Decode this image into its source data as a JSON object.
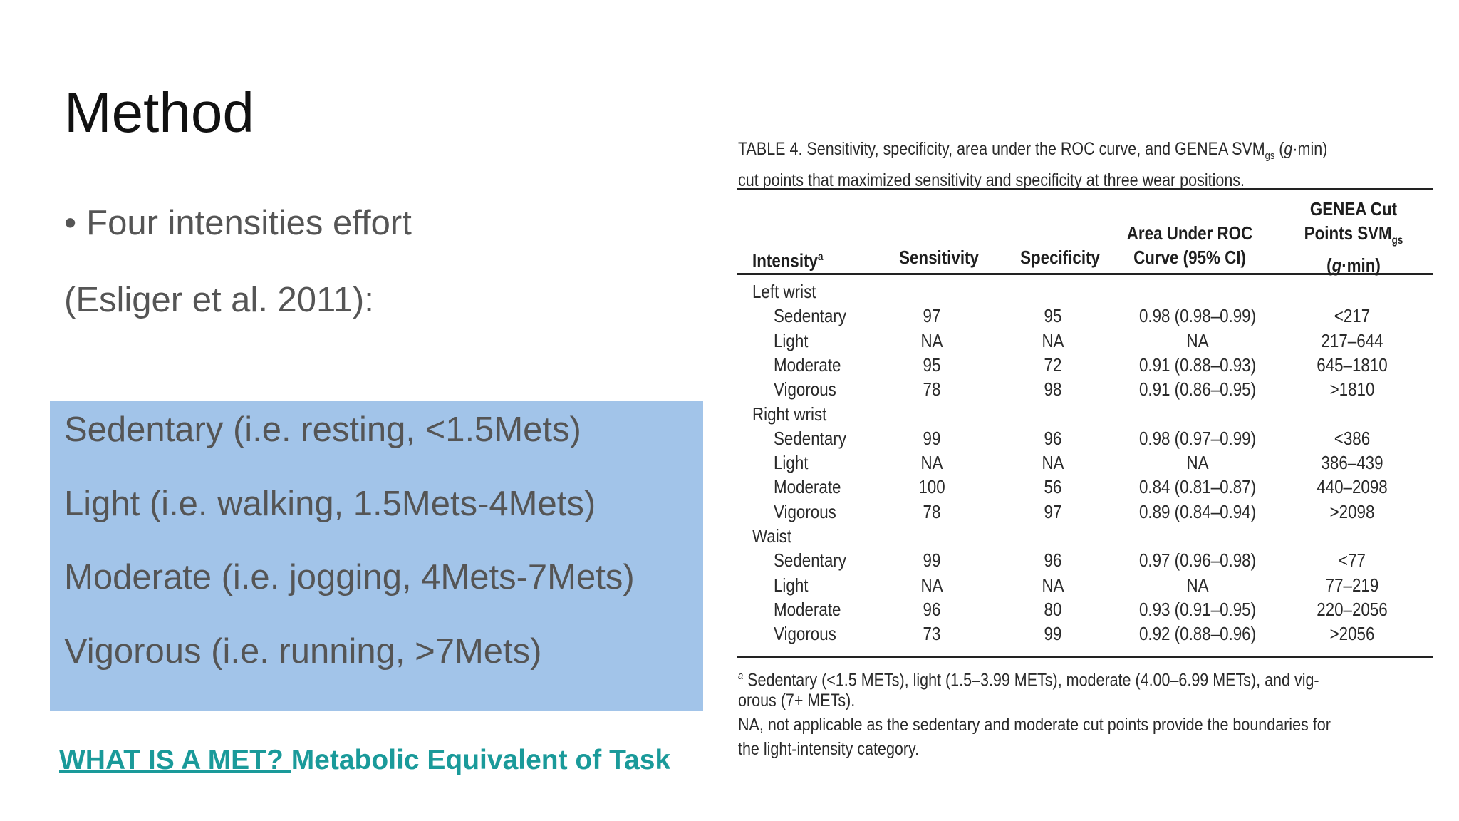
{
  "slide": {
    "title": "Method",
    "bullet_glyph": "•",
    "bullet": "Four intensities effort",
    "citation": "(Esliger et al. 2011):",
    "intensities": [
      "Sedentary (i.e. resting, <1.5Mets)",
      "Light (i.e. walking, 1.5Mets-4Mets)",
      "Moderate (i.e. jogging, 4Mets-7Mets)",
      "Vigorous (i.e. running, >7Mets)"
    ],
    "link_text": "WHAT IS A MET? ",
    "link_desc": "Metabolic Equivalent of Task",
    "box_color": "#a2c4e9",
    "link_color": "#1a9a9a"
  },
  "table": {
    "caption_line1_a": "TABLE 4. Sensitivity, specificity, area under the ROC curve, and GENEA SVM",
    "caption_sub": "gs",
    "caption_line1_b": " (",
    "caption_g": "g",
    "caption_line1_c": "·min)",
    "caption_line2": "cut points that maximized sensitivity and specificity at three wear positions.",
    "headers": {
      "intensity": "Intensity",
      "intensity_sup": "a",
      "sensitivity": "Sensitivity",
      "specificity": "Specificity",
      "auc_1": "Area Under ROC",
      "auc_2": "Curve (95% CI)",
      "cut_1": "GENEA Cut",
      "cut_2a": "Points SVM",
      "cut_2sub": "gs",
      "cut_3a": "(",
      "cut_3g": "g",
      "cut_3b": "·min)"
    },
    "groups": [
      {
        "name": "Left wrist",
        "rows": [
          {
            "intensity": "Sedentary",
            "sensitivity": "97",
            "specificity": "95",
            "auc": "0.98 (0.98–0.99)",
            "cut": "<217"
          },
          {
            "intensity": "Light",
            "sensitivity": "NA",
            "specificity": "NA",
            "auc": "NA",
            "cut": "217–644"
          },
          {
            "intensity": "Moderate",
            "sensitivity": "95",
            "specificity": "72",
            "auc": "0.91 (0.88–0.93)",
            "cut": "645–1810"
          },
          {
            "intensity": "Vigorous",
            "sensitivity": "78",
            "specificity": "98",
            "auc": "0.91 (0.86–0.95)",
            "cut": ">1810"
          }
        ]
      },
      {
        "name": "Right wrist",
        "rows": [
          {
            "intensity": "Sedentary",
            "sensitivity": "99",
            "specificity": "96",
            "auc": "0.98 (0.97–0.99)",
            "cut": "<386"
          },
          {
            "intensity": "Light",
            "sensitivity": "NA",
            "specificity": "NA",
            "auc": "NA",
            "cut": "386–439"
          },
          {
            "intensity": "Moderate",
            "sensitivity": "100",
            "specificity": "56",
            "auc": "0.84 (0.81–0.87)",
            "cut": "440–2098"
          },
          {
            "intensity": "Vigorous",
            "sensitivity": "78",
            "specificity": "97",
            "auc": "0.89 (0.84–0.94)",
            "cut": ">2098"
          }
        ]
      },
      {
        "name": "Waist",
        "rows": [
          {
            "intensity": "Sedentary",
            "sensitivity": "99",
            "specificity": "96",
            "auc": "0.97 (0.96–0.98)",
            "cut": "<77"
          },
          {
            "intensity": "Light",
            "sensitivity": "NA",
            "specificity": "NA",
            "auc": "NA",
            "cut": "77–219"
          },
          {
            "intensity": "Moderate",
            "sensitivity": "96",
            "specificity": "80",
            "auc": "0.93 (0.91–0.95)",
            "cut": "220–2056"
          },
          {
            "intensity": "Vigorous",
            "sensitivity": "73",
            "specificity": "99",
            "auc": "0.92 (0.88–0.96)",
            "cut": ">2056"
          }
        ]
      }
    ],
    "footnote_sup": "a",
    "footnote_1": " Sedentary (<1.5 METs), light (1.5–3.99 METs), moderate (4.00–6.99 METs), and vig-",
    "footnote_2": "orous (7+ METs).",
    "footnote_3": "NA, not applicable as the sedentary and moderate cut points provide the boundaries for",
    "footnote_4": "the light-intensity category."
  }
}
